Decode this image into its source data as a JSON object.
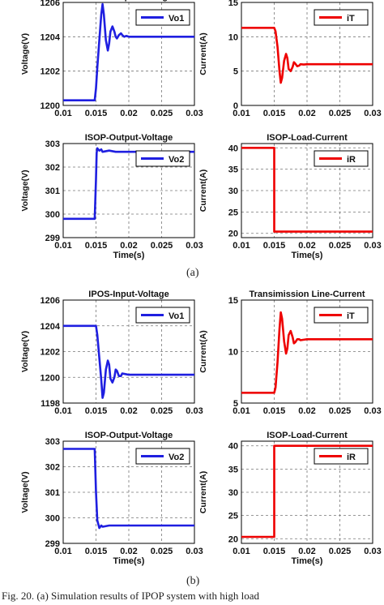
{
  "caption": "Fig. 20. (a) Simulation results of IPOP system with high load",
  "sublabels": [
    "(a)",
    "(b)"
  ],
  "colors": {
    "blue": "#1f1fe0",
    "red": "#ee0000"
  },
  "chart_data": [
    {
      "type": "line",
      "title": "IPOS-Output-Voltage",
      "xlabel": "",
      "ylabel": "Voltage(V)",
      "xlim": [
        0.01,
        0.03
      ],
      "ylim": [
        1200,
        1206
      ],
      "xticks": [
        "0.01",
        "0.015",
        "0.02",
        "0.025",
        "0.03"
      ],
      "yticks": [
        "1200",
        "1202",
        "1204",
        "1206"
      ],
      "legend": "top-right",
      "grid": true,
      "series": [
        {
          "name": "Vo1",
          "color": "blue",
          "x": [
            0.01,
            0.0148,
            0.015,
            0.0152,
            0.0155,
            0.0158,
            0.016,
            0.0162,
            0.0165,
            0.0168,
            0.017,
            0.0172,
            0.0175,
            0.0178,
            0.018,
            0.0182,
            0.0185,
            0.0188,
            0.019,
            0.0193,
            0.0196,
            0.02,
            0.0205,
            0.03
          ],
          "y": [
            1200.3,
            1200.3,
            1201.0,
            1202.2,
            1203.8,
            1205.3,
            1205.9,
            1205.3,
            1203.8,
            1203.2,
            1203.6,
            1204.3,
            1204.6,
            1204.3,
            1204.0,
            1203.9,
            1204.1,
            1204.2,
            1204.1,
            1204.0,
            1204.05,
            1204.0,
            1204.0,
            1204.0
          ]
        }
      ]
    },
    {
      "type": "line",
      "title": "Transimission Line-Current",
      "xlabel": "",
      "ylabel": "Current(A)",
      "xlim": [
        0.01,
        0.03
      ],
      "ylim": [
        0,
        15
      ],
      "xticks": [
        "0.01",
        "0.015",
        "0.02",
        "0.025",
        "0.03"
      ],
      "yticks": [
        "0",
        "5",
        "10",
        "15"
      ],
      "legend": "top-right",
      "grid": true,
      "series": [
        {
          "name": "iT",
          "color": "red",
          "x": [
            0.01,
            0.015,
            0.0152,
            0.0155,
            0.0158,
            0.016,
            0.0162,
            0.0165,
            0.0168,
            0.017,
            0.0172,
            0.0175,
            0.0178,
            0.018,
            0.0182,
            0.0185,
            0.0188,
            0.019,
            0.0195,
            0.02,
            0.021,
            0.03
          ],
          "y": [
            11.3,
            11.3,
            10.8,
            8.5,
            5.0,
            3.3,
            4.0,
            6.5,
            7.5,
            6.9,
            5.3,
            5.0,
            5.6,
            6.3,
            6.1,
            5.7,
            5.8,
            6.0,
            5.95,
            6.0,
            6.0,
            6.0
          ]
        }
      ]
    },
    {
      "type": "line",
      "title": "ISOP-Output-Voltage",
      "xlabel": "Time(s)",
      "ylabel": "Voltage(V)",
      "xlim": [
        0.01,
        0.03
      ],
      "ylim": [
        299,
        303
      ],
      "xticks": [
        "0.01",
        "0.015",
        "0.02",
        "0.025",
        "0.03"
      ],
      "yticks": [
        "299",
        "300",
        "301",
        "302",
        "303"
      ],
      "legend": "top-right",
      "grid": true,
      "series": [
        {
          "name": "Vo2",
          "color": "blue",
          "x": [
            0.01,
            0.0148,
            0.015,
            0.0151,
            0.0152,
            0.0155,
            0.0158,
            0.016,
            0.017,
            0.018,
            0.03
          ],
          "y": [
            299.8,
            299.8,
            301.5,
            302.6,
            302.8,
            302.7,
            302.75,
            302.65,
            302.7,
            302.65,
            302.65
          ]
        }
      ]
    },
    {
      "type": "line",
      "title": "ISOP-Load-Current",
      "xlabel": "Time(s)",
      "ylabel": "Current(A)",
      "xlim": [
        0.01,
        0.03
      ],
      "ylim": [
        19,
        41
      ],
      "xticks": [
        "0.01",
        "0.015",
        "0.02",
        "0.025",
        "0.03"
      ],
      "yticks": [
        "20",
        "25",
        "30",
        "35",
        "40"
      ],
      "legend": "top-right",
      "grid": true,
      "series": [
        {
          "name": "iR",
          "color": "red",
          "x": [
            0.01,
            0.015,
            0.015,
            0.03
          ],
          "y": [
            40,
            40,
            20.4,
            20.4
          ]
        }
      ]
    },
    {
      "type": "line",
      "title": "IPOS-Input-Voltage",
      "xlabel": "",
      "ylabel": "Voltage(V)",
      "xlim": [
        0.01,
        0.03
      ],
      "ylim": [
        1198,
        1206
      ],
      "xticks": [
        "0.01",
        "0.015",
        "0.02",
        "0.025",
        "0.03"
      ],
      "yticks": [
        "1198",
        "1200",
        "1202",
        "1204",
        "1206"
      ],
      "legend": "top-right",
      "grid": true,
      "series": [
        {
          "name": "Vo1",
          "color": "blue",
          "x": [
            0.01,
            0.015,
            0.0152,
            0.0155,
            0.0158,
            0.016,
            0.0162,
            0.0165,
            0.0168,
            0.017,
            0.0172,
            0.0175,
            0.0178,
            0.018,
            0.0182,
            0.0185,
            0.0188,
            0.019,
            0.0195,
            0.02,
            0.021,
            0.03
          ],
          "y": [
            1204.0,
            1204.0,
            1203.3,
            1201.5,
            1199.8,
            1198.4,
            1198.8,
            1200.6,
            1201.3,
            1201.0,
            1199.9,
            1199.6,
            1200.0,
            1200.6,
            1200.5,
            1200.1,
            1200.1,
            1200.3,
            1200.25,
            1200.2,
            1200.2,
            1200.2
          ]
        }
      ]
    },
    {
      "type": "line",
      "title": "Transimission Line-Current",
      "xlabel": "",
      "ylabel": "Current(A)",
      "xlim": [
        0.01,
        0.03
      ],
      "ylim": [
        5,
        15
      ],
      "xticks": [
        "0.01",
        "0.015",
        "0.02",
        "0.025",
        "0.03"
      ],
      "yticks": [
        "5",
        "10",
        "15"
      ],
      "legend": "top-right",
      "grid": true,
      "series": [
        {
          "name": "iT",
          "color": "red",
          "x": [
            0.01,
            0.015,
            0.0152,
            0.0155,
            0.0158,
            0.016,
            0.0162,
            0.0165,
            0.0168,
            0.017,
            0.0172,
            0.0175,
            0.0178,
            0.018,
            0.0182,
            0.0185,
            0.0188,
            0.019,
            0.0195,
            0.02,
            0.021,
            0.03
          ],
          "y": [
            6.0,
            6.0,
            6.5,
            9.0,
            12.2,
            13.8,
            13.2,
            11.0,
            9.8,
            10.3,
            11.6,
            12.0,
            11.4,
            10.8,
            10.9,
            11.2,
            11.2,
            11.1,
            11.15,
            11.2,
            11.2,
            11.2
          ]
        }
      ]
    },
    {
      "type": "line",
      "title": "ISOP-Output-Voltage",
      "xlabel": "Time(s)",
      "ylabel": "Voltage(V)",
      "xlim": [
        0.01,
        0.03
      ],
      "ylim": [
        299,
        303
      ],
      "xticks": [
        "0.01",
        "0.015",
        "0.02",
        "0.025",
        "0.03"
      ],
      "yticks": [
        "299",
        "300",
        "301",
        "302",
        "303"
      ],
      "legend": "top-right",
      "grid": true,
      "series": [
        {
          "name": "Vo2",
          "color": "blue",
          "x": [
            0.01,
            0.0148,
            0.015,
            0.0152,
            0.0155,
            0.0158,
            0.016,
            0.017,
            0.018,
            0.03
          ],
          "y": [
            302.7,
            302.7,
            301.0,
            299.9,
            299.6,
            299.7,
            299.65,
            299.7,
            299.7,
            299.7
          ]
        }
      ]
    },
    {
      "type": "line",
      "title": "ISOP-Load-Current",
      "xlabel": "Time(s)",
      "ylabel": "Current(A)",
      "xlim": [
        0.01,
        0.03
      ],
      "ylim": [
        19,
        41
      ],
      "xticks": [
        "0.01",
        "0.015",
        "0.02",
        "0.025",
        "0.03"
      ],
      "yticks": [
        "20",
        "25",
        "30",
        "35",
        "40"
      ],
      "legend": "top-right",
      "grid": true,
      "series": [
        {
          "name": "iR",
          "color": "red",
          "x": [
            0.01,
            0.015,
            0.015,
            0.03
          ],
          "y": [
            20.4,
            20.4,
            40,
            40
          ]
        }
      ]
    }
  ]
}
